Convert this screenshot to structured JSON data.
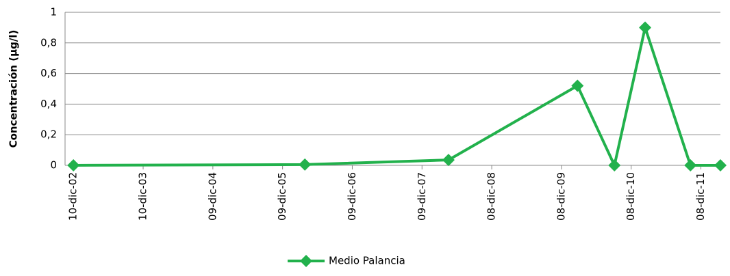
{
  "chart_data": {
    "type": "line",
    "y_label": "Concentración (µg/l)",
    "x": [
      2002.94,
      2006.26,
      2008.32,
      2010.17,
      2010.7,
      2011.14,
      2011.79,
      2012.22
    ],
    "series": [
      {
        "name": "Medio Palancia",
        "color": "#22b14c",
        "values": [
          0,
          0.005,
          0.035,
          0.52,
          0,
          0.9,
          0,
          0
        ]
      }
    ],
    "xlim": [
      2002.82,
      2012.22
    ],
    "xticks": [
      {
        "value": 2002.94,
        "label": "10-dic-02"
      },
      {
        "value": 2003.94,
        "label": "10-dic-03"
      },
      {
        "value": 2004.94,
        "label": "09-dic-04"
      },
      {
        "value": 2005.94,
        "label": "09-dic-05"
      },
      {
        "value": 2006.94,
        "label": "09-dic-06"
      },
      {
        "value": 2007.94,
        "label": "09-dic-07"
      },
      {
        "value": 2008.94,
        "label": "08-dic-08"
      },
      {
        "value": 2009.94,
        "label": "08-dic-09"
      },
      {
        "value": 2010.94,
        "label": "08-dic-10"
      },
      {
        "value": 2011.94,
        "label": "08-dic-11"
      }
    ],
    "ylim": [
      0,
      1
    ],
    "yticks": [
      0,
      {
        "value": 0.2,
        "label": "0,2"
      },
      {
        "value": 0.4,
        "label": "0,4"
      },
      {
        "value": 0.6,
        "label": "0,6"
      },
      {
        "value": 0.8,
        "label": "0,8"
      },
      1
    ],
    "grid": true,
    "legend": "bottom"
  }
}
